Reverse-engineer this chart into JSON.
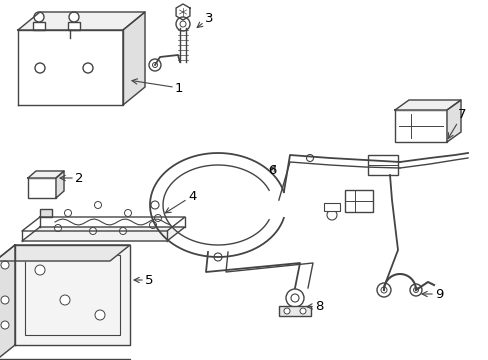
{
  "background_color": "#ffffff",
  "line_color": "#444444",
  "label_color": "#000000",
  "figsize": [
    4.89,
    3.6
  ],
  "dpi": 100,
  "xlim": [
    0,
    489
  ],
  "ylim": [
    0,
    360
  ]
}
